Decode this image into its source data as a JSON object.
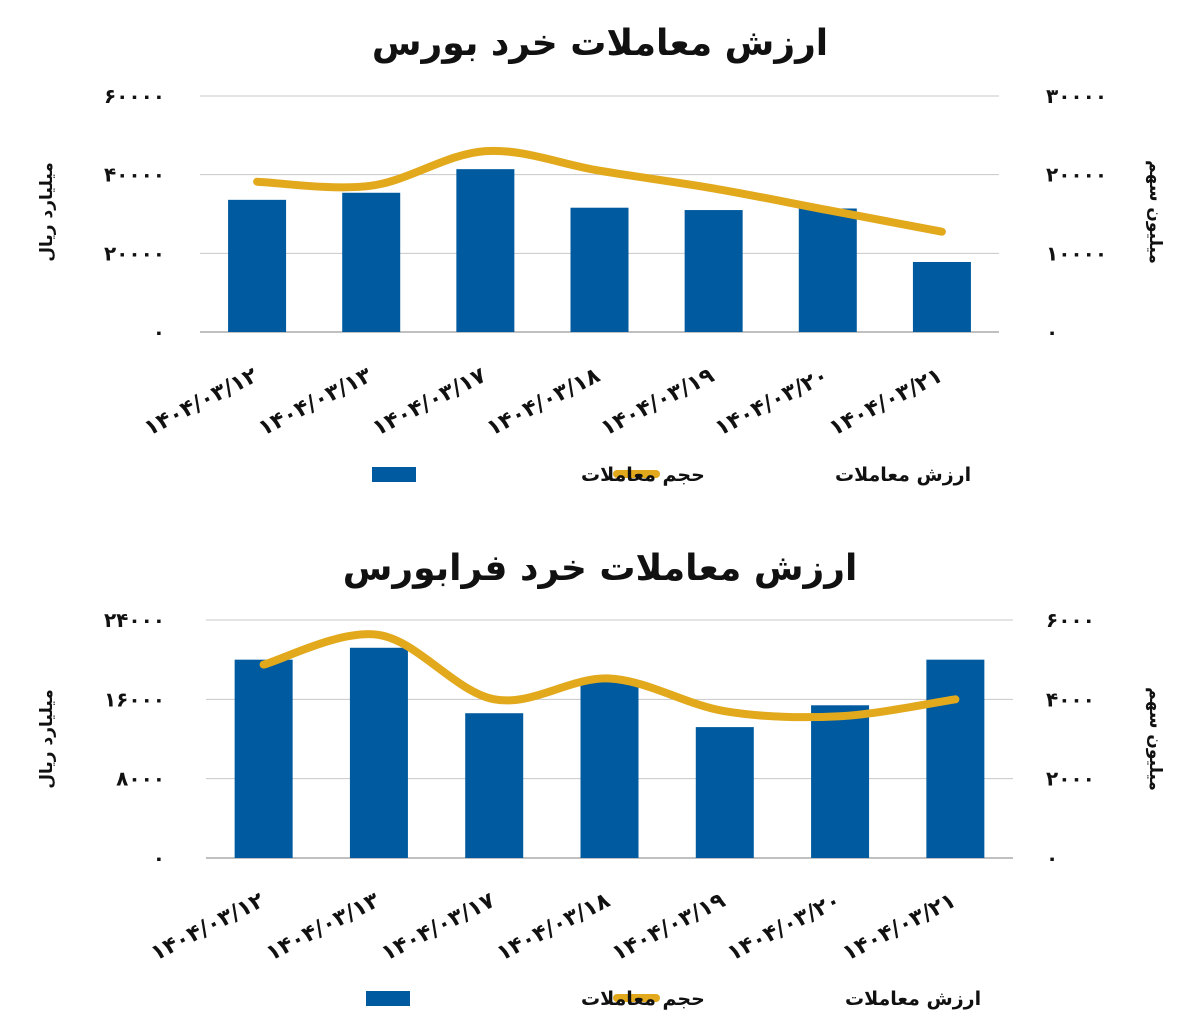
{
  "colors": {
    "bar": "#005aa0",
    "line": "#e2a91c",
    "grid": "#c8c8c8"
  },
  "chart_data": [
    {
      "type": "bar",
      "title": "ارزش معاملات خرد بورس",
      "categories": [
        "۱۴۰۴/۰۳/۱۲",
        "۱۴۰۴/۰۳/۱۳",
        "۱۴۰۴/۰۳/۱۷",
        "۱۴۰۴/۰۳/۱۸",
        "۱۴۰۴/۰۳/۱۹",
        "۱۴۰۴/۰۳/۲۰",
        "۱۴۰۴/۰۳/۲۱"
      ],
      "ylabel_left": "میلیارد ریال",
      "ylabel_right": "میلیون سهم",
      "ylim_left": [
        0,
        60000
      ],
      "ylim_right": [
        0,
        30000
      ],
      "yticks_left": [
        "۰",
        "۲۰۰۰۰",
        "۴۰۰۰۰",
        "۶۰۰۰۰"
      ],
      "yticks_right": [
        "۰",
        "۱۰۰۰۰",
        "۲۰۰۰۰",
        "۳۰۰۰۰"
      ],
      "grid": true,
      "legend_position": "bottom",
      "series": [
        {
          "name": "حجم معاملات",
          "type": "bar",
          "axis": "right",
          "values": [
            16800,
            17700,
            20700,
            15800,
            15500,
            15700,
            8900
          ]
        },
        {
          "name": "ارزش معاملات",
          "type": "line",
          "axis": "left",
          "values": [
            38200,
            37200,
            46000,
            41000,
            36500,
            31000,
            25500
          ]
        }
      ]
    },
    {
      "type": "bar",
      "title": "ارزش معاملات خرد فرابورس",
      "categories": [
        "۱۴۰۴/۰۳/۱۲",
        "۱۴۰۴/۰۳/۱۳",
        "۱۴۰۴/۰۳/۱۷",
        "۱۴۰۴/۰۳/۱۸",
        "۱۴۰۴/۰۳/۱۹",
        "۱۴۰۴/۰۳/۲۰",
        "۱۴۰۴/۰۳/۲۱"
      ],
      "ylabel_left": "میلیارد ریال",
      "ylabel_right": "میلیون سهم",
      "ylim_left": [
        0,
        24000
      ],
      "ylim_right": [
        0,
        6000
      ],
      "yticks_left": [
        "۰",
        "۸۰۰۰",
        "۱۶۰۰۰",
        "۲۴۰۰۰"
      ],
      "yticks_right": [
        "۰",
        "۲۰۰۰",
        "۴۰۰۰",
        "۶۰۰۰"
      ],
      "grid": true,
      "legend_position": "bottom",
      "series": [
        {
          "name": "حجم معاملات",
          "type": "bar",
          "axis": "right",
          "values": [
            5000,
            5300,
            3650,
            4450,
            3300,
            3850,
            5000
          ]
        },
        {
          "name": "ارزش معاملات",
          "type": "line",
          "axis": "left",
          "values": [
            19500,
            22500,
            16000,
            18100,
            14800,
            14300,
            16000
          ]
        }
      ]
    }
  ]
}
